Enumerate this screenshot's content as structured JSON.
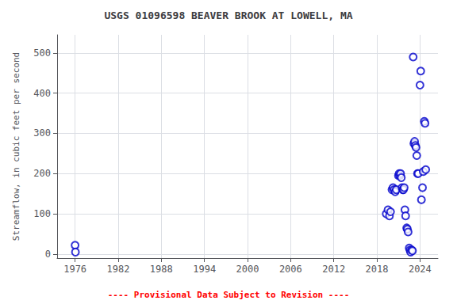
{
  "chart_data": {
    "type": "scatter",
    "title": "USGS 01096598 BEAVER BROOK AT LOWELL, MA",
    "ylabel": "Streamflow, in cubic feet per second",
    "annotations": [
      {
        "text": "---- Provisional Data Subject to Revision ----",
        "color": "red"
      }
    ],
    "x": [
      1976.0,
      1976.05,
      2019.3,
      2019.55,
      2019.75,
      2019.9,
      2020.1,
      2020.25,
      2020.4,
      2020.55,
      2020.7,
      2021.0,
      2021.1,
      2021.2,
      2021.3,
      2021.4,
      2021.5,
      2021.6,
      2021.7,
      2021.8,
      2021.9,
      2022.0,
      2022.15,
      2022.25,
      2022.35,
      2022.5,
      2022.6,
      2022.7,
      2022.85,
      2022.95,
      2023.05,
      2023.15,
      2023.25,
      2023.35,
      2023.45,
      2023.55,
      2023.65,
      2023.75,
      2024.0,
      2024.1,
      2024.2,
      2024.35,
      2024.45,
      2024.6,
      2024.7,
      2024.8
    ],
    "values": [
      22,
      5,
      100,
      110,
      95,
      105,
      160,
      165,
      160,
      155,
      160,
      195,
      200,
      195,
      200,
      190,
      165,
      160,
      160,
      165,
      110,
      95,
      65,
      62,
      55,
      15,
      10,
      5,
      10,
      8,
      490,
      275,
      280,
      270,
      265,
      245,
      200,
      200,
      420,
      455,
      135,
      165,
      205,
      330,
      325,
      210
    ],
    "color": "#0000cc",
    "marker": "circle",
    "xlim": [
      1973.5,
      2026.5
    ],
    "ylim": [
      -10,
      545
    ],
    "xticks": [
      1976,
      1982,
      1988,
      1994,
      2000,
      2006,
      2012,
      2018,
      2024
    ],
    "yticks": [
      0,
      100,
      200,
      300,
      400,
      500
    ],
    "grid": true
  }
}
